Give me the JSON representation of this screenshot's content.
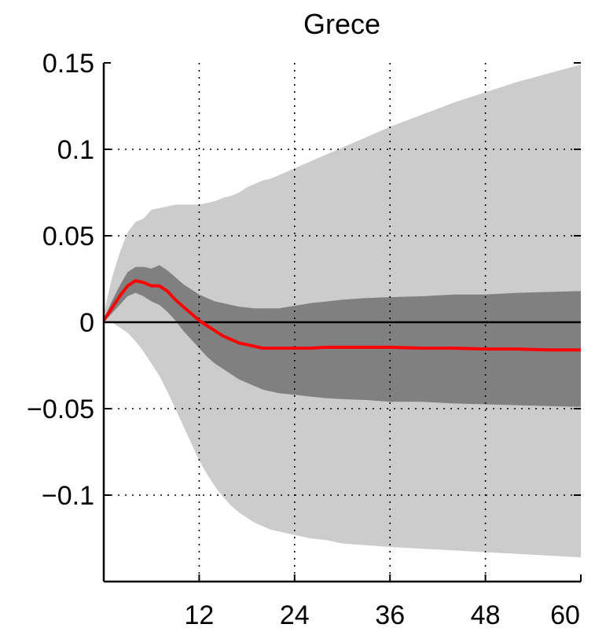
{
  "chart_data": {
    "type": "area",
    "title": "Grece",
    "xlabel": "",
    "ylabel": "",
    "xlim": [
      0,
      60
    ],
    "ylim": [
      -0.15,
      0.15
    ],
    "x_ticks": [
      12,
      24,
      36,
      48,
      60
    ],
    "x_tick_labels": [
      "12",
      "24",
      "36",
      "48",
      "60"
    ],
    "y_ticks": [
      0.15,
      0.1,
      0.05,
      0,
      -0.05,
      -0.1
    ],
    "y_tick_labels": [
      "0.15",
      "0.1",
      "0.05",
      "0",
      "−0.05",
      "−0.1"
    ],
    "grid": true,
    "zero_line": 0,
    "x": [
      0,
      1,
      2,
      3,
      4,
      5,
      6,
      7,
      8,
      9,
      10,
      11,
      12,
      13,
      14,
      15,
      16,
      17,
      18,
      19,
      20,
      21,
      22,
      24,
      26,
      28,
      30,
      33,
      36,
      40,
      44,
      48,
      52,
      56,
      60
    ],
    "series": [
      {
        "role": "median",
        "color": "#ff0000",
        "values": [
          0.001,
          0.008,
          0.015,
          0.021,
          0.024,
          0.023,
          0.021,
          0.021,
          0.018,
          0.013,
          0.009,
          0.005,
          0.001,
          -0.002,
          -0.005,
          -0.008,
          -0.01,
          -0.012,
          -0.013,
          -0.014,
          -0.015,
          -0.015,
          -0.015,
          -0.015,
          -0.015,
          -0.0145,
          -0.0145,
          -0.0145,
          -0.0145,
          -0.015,
          -0.015,
          -0.0155,
          -0.0155,
          -0.016,
          -0.016
        ]
      },
      {
        "role": "inner_band_upper",
        "color": "#808080",
        "values": [
          0.002,
          0.012,
          0.021,
          0.029,
          0.032,
          0.032,
          0.031,
          0.033,
          0.03,
          0.026,
          0.022,
          0.019,
          0.016,
          0.014,
          0.012,
          0.011,
          0.01,
          0.009,
          0.0085,
          0.008,
          0.008,
          0.008,
          0.008,
          0.0095,
          0.011,
          0.012,
          0.013,
          0.014,
          0.0145,
          0.015,
          0.016,
          0.016,
          0.017,
          0.0175,
          0.018
        ]
      },
      {
        "role": "inner_band_lower",
        "color": "#808080",
        "values": [
          0.0,
          0.005,
          0.01,
          0.015,
          0.017,
          0.015,
          0.012,
          0.01,
          0.006,
          0.001,
          -0.005,
          -0.01,
          -0.015,
          -0.02,
          -0.024,
          -0.027,
          -0.03,
          -0.033,
          -0.035,
          -0.037,
          -0.039,
          -0.04,
          -0.041,
          -0.042,
          -0.043,
          -0.044,
          -0.0445,
          -0.045,
          -0.046,
          -0.046,
          -0.047,
          -0.0475,
          -0.048,
          -0.0485,
          -0.049
        ]
      },
      {
        "role": "outer_band_upper",
        "color": "#cccccc",
        "values": [
          0.005,
          0.025,
          0.04,
          0.052,
          0.058,
          0.06,
          0.065,
          0.066,
          0.067,
          0.068,
          0.068,
          0.068,
          0.068,
          0.069,
          0.07,
          0.072,
          0.073,
          0.075,
          0.078,
          0.08,
          0.082,
          0.083,
          0.085,
          0.089,
          0.093,
          0.097,
          0.101,
          0.107,
          0.113,
          0.12,
          0.127,
          0.133,
          0.139,
          0.144,
          0.149
        ]
      },
      {
        "role": "outer_band_lower",
        "color": "#cccccc",
        "values": [
          0.0,
          0.0,
          -0.003,
          -0.006,
          -0.011,
          -0.017,
          -0.024,
          -0.031,
          -0.04,
          -0.05,
          -0.06,
          -0.07,
          -0.08,
          -0.088,
          -0.095,
          -0.101,
          -0.106,
          -0.11,
          -0.113,
          -0.116,
          -0.118,
          -0.12,
          -0.121,
          -0.123,
          -0.125,
          -0.126,
          -0.128,
          -0.129,
          -0.13,
          -0.131,
          -0.132,
          -0.133,
          -0.134,
          -0.135,
          -0.136
        ]
      }
    ]
  }
}
